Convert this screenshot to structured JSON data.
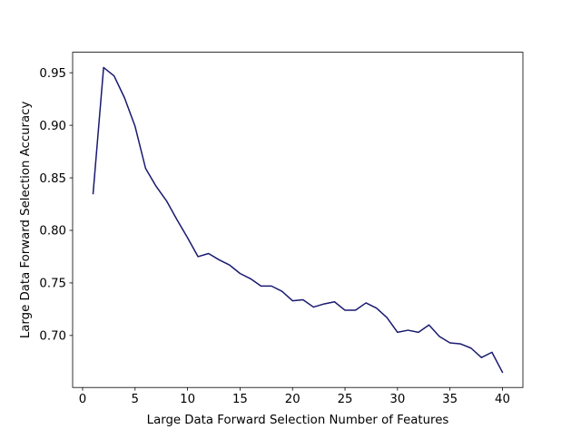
{
  "chart_data": {
    "type": "line",
    "title": "",
    "xlabel": "Large Data Forward Selection Number of Features",
    "ylabel": "Large Data Forward Selection Accuracy",
    "xlim": [
      -0.95,
      41.95
    ],
    "ylim": [
      0.6505,
      0.9695
    ],
    "xticks": [
      0,
      5,
      10,
      15,
      20,
      25,
      30,
      35,
      40
    ],
    "xtick_labels": [
      "0",
      "5",
      "10",
      "15",
      "20",
      "25",
      "30",
      "35",
      "40"
    ],
    "yticks": [
      0.7,
      0.75,
      0.8,
      0.85,
      0.9,
      0.95
    ],
    "ytick_labels": [
      "0.70",
      "0.75",
      "0.80",
      "0.85",
      "0.90",
      "0.95"
    ],
    "grid": false,
    "legend": "none",
    "series": [
      {
        "color": "#191970",
        "x": [
          1,
          2,
          3,
          4,
          5,
          6,
          7,
          8,
          9,
          10,
          11,
          12,
          13,
          14,
          15,
          16,
          17,
          18,
          19,
          20,
          21,
          22,
          23,
          24,
          25,
          26,
          27,
          28,
          29,
          30,
          31,
          32,
          33,
          34,
          35,
          36,
          37,
          38,
          39,
          40
        ],
        "y": [
          0.835,
          0.955,
          0.947,
          0.926,
          0.899,
          0.859,
          0.842,
          0.828,
          0.81,
          0.793,
          0.775,
          0.778,
          0.772,
          0.767,
          0.759,
          0.754,
          0.747,
          0.747,
          0.742,
          0.733,
          0.734,
          0.727,
          0.73,
          0.732,
          0.724,
          0.724,
          0.731,
          0.726,
          0.717,
          0.703,
          0.705,
          0.703,
          0.71,
          0.699,
          0.693,
          0.692,
          0.688,
          0.679,
          0.684,
          0.665
        ]
      }
    ]
  }
}
